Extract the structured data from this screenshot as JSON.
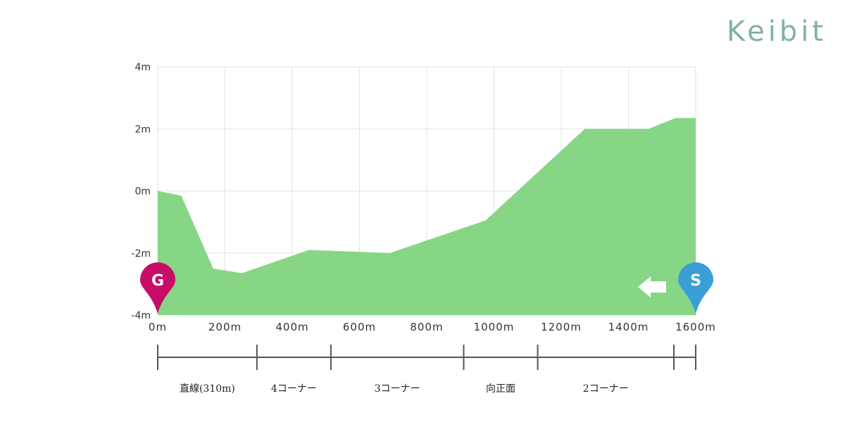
{
  "brand": "Keibit",
  "chart_data": {
    "type": "area",
    "x": [
      0,
      70,
      165,
      250,
      450,
      690,
      975,
      1270,
      1460,
      1540,
      1600
    ],
    "values": [
      0,
      -0.15,
      -2.5,
      -2.65,
      -1.9,
      -2.0,
      -0.95,
      2.0,
      2.0,
      2.35,
      2.35
    ],
    "xlim": [
      0,
      1600
    ],
    "ylim": [
      -4,
      4
    ],
    "x_ticks": [
      0,
      200,
      400,
      600,
      800,
      1000,
      1200,
      1400,
      1600
    ],
    "x_tick_labels": [
      "0m",
      "200m",
      "400m",
      "600m",
      "800m",
      "1000m",
      "1200m",
      "1400m",
      "1600m"
    ],
    "y_ticks": [
      4,
      2,
      0,
      -2,
      -4
    ],
    "y_tick_labels": [
      "4m",
      "2m",
      "0m",
      "-2m",
      "-4m"
    ],
    "grid": true,
    "fill_color": "#86d686",
    "direction": "right-to-left",
    "markers": [
      {
        "label": "G",
        "x": 0,
        "color": "#c80c6a"
      },
      {
        "label": "S",
        "x": 1600,
        "color": "#3a9fd6"
      }
    ],
    "segments": {
      "boundaries": [
        0,
        295,
        515,
        910,
        1130,
        1535,
        1600
      ],
      "labels": [
        {
          "text": "直線(310m)",
          "from": 0,
          "to": 295
        },
        {
          "text": "4コーナー",
          "from": 295,
          "to": 515
        },
        {
          "text": "3コーナー",
          "from": 515,
          "to": 910
        },
        {
          "text": "向正面",
          "from": 910,
          "to": 1130
        },
        {
          "text": "2コーナー",
          "from": 1130,
          "to": 1535
        }
      ]
    }
  }
}
